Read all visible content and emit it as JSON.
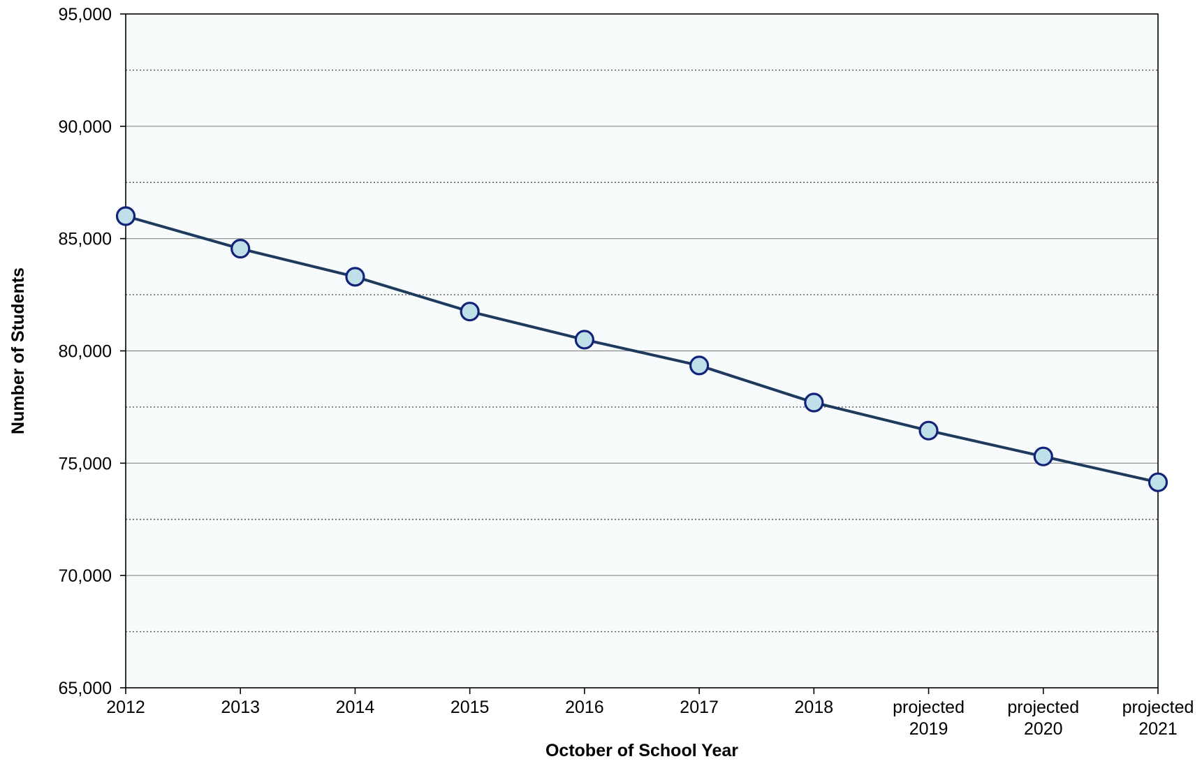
{
  "chart_data": {
    "type": "line",
    "title": "",
    "xlabel": "October of School Year",
    "ylabel": "Number of Students",
    "categories": [
      [
        "2012"
      ],
      [
        "2013"
      ],
      [
        "2014"
      ],
      [
        "2015"
      ],
      [
        "2016"
      ],
      [
        "2017"
      ],
      [
        "2018"
      ],
      [
        "projected",
        "2019"
      ],
      [
        "projected",
        "2020"
      ],
      [
        "projected",
        "2021"
      ]
    ],
    "series": [
      {
        "values": [
          86000,
          84550,
          83300,
          81750,
          80500,
          79350,
          77700,
          76450,
          75300,
          74150
        ]
      }
    ],
    "ylim": [
      65000,
      95000
    ],
    "yticks": [
      65000,
      70000,
      75000,
      80000,
      85000,
      90000,
      95000
    ],
    "ytick_labels": [
      "65,000",
      "70,000",
      "75,000",
      "80,000",
      "85,000",
      "90,000",
      "95,000"
    ],
    "minor_gridlines": [
      67500,
      72500,
      77500,
      82500,
      87500,
      92500
    ],
    "grid": true,
    "legend": "none",
    "colors": {
      "plot_background": "#f7fbfb",
      "line": "#1f3a5f",
      "marker_fill": "#bfe0e8",
      "marker_edge": "#14237a",
      "major_grid": "#8a8a8a",
      "minor_grid": "#555555",
      "axis": "#000000",
      "text": "#000000"
    }
  }
}
